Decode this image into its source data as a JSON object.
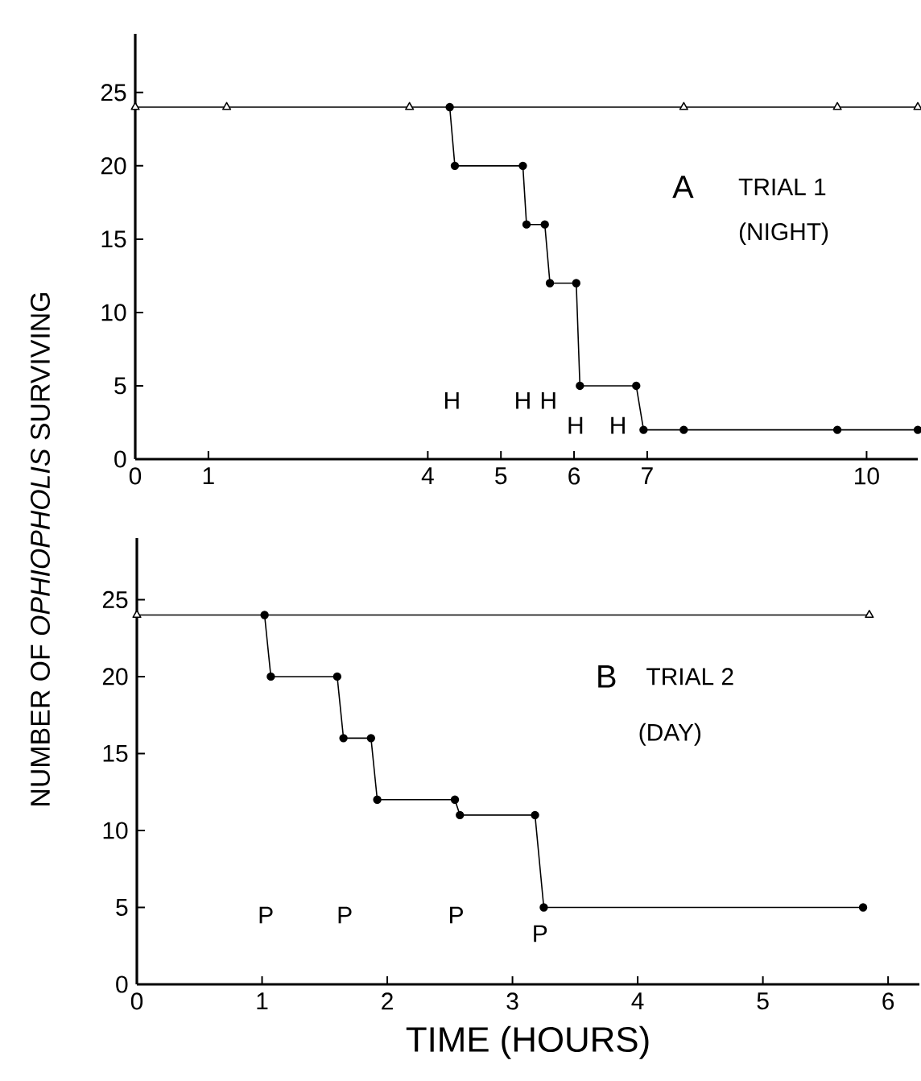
{
  "chart_data": [
    {
      "type": "line",
      "title": "A",
      "subtitle": "TRIAL 1",
      "ylabel": "NUMBER OF *OPHIOPHOLIS* SURVIVING",
      "annotations": [
        "(NIGHT)",
        "H",
        "H",
        "H",
        "H",
        "H"
      ],
      "xlim": [
        0,
        10.7
      ],
      "xticks": [
        0,
        1,
        4,
        5,
        6,
        7,
        10
      ],
      "ylim": [
        0,
        29
      ],
      "yticks": [
        0,
        5,
        10,
        15,
        20,
        25
      ],
      "series": [
        {
          "color": "#000000",
          "marker": "triangle",
          "x": [
            0,
            1.25,
            3.75,
            7.5,
            9.6,
            10.7
          ],
          "values": [
            24,
            24,
            24,
            24,
            24,
            24
          ]
        },
        {
          "color": "#000000",
          "marker": "circle",
          "x": [
            4.3,
            4.37,
            5.3,
            5.35,
            5.6,
            5.67,
            6.03,
            6.08,
            6.85,
            6.95,
            7.5,
            9.6,
            10.7
          ],
          "values": [
            24,
            20,
            20,
            16,
            16,
            12,
            12,
            5,
            5,
            2,
            2,
            2,
            2
          ]
        }
      ]
    },
    {
      "type": "line",
      "title": "B",
      "subtitle": "TRIAL 2",
      "xlabel": "TIME (HOURS)",
      "annotations": [
        "(DAY)",
        "P",
        "P",
        "P",
        "P"
      ],
      "xlim": [
        0,
        6.25
      ],
      "xticks": [
        0,
        1,
        2,
        3,
        4,
        5,
        6
      ],
      "ylim": [
        0,
        29
      ],
      "yticks": [
        0,
        5,
        10,
        15,
        20,
        25
      ],
      "series": [
        {
          "color": "#000000",
          "marker": "triangle",
          "x": [
            0,
            5.85
          ],
          "values": [
            24,
            24
          ]
        },
        {
          "color": "#000000",
          "marker": "circle",
          "x": [
            1.02,
            1.07,
            1.6,
            1.65,
            1.87,
            1.92,
            2.54,
            2.58,
            3.18,
            3.25,
            5.8
          ],
          "values": [
            24,
            20,
            20,
            16,
            16,
            12,
            12,
            11,
            11,
            5,
            5
          ]
        }
      ]
    }
  ]
}
